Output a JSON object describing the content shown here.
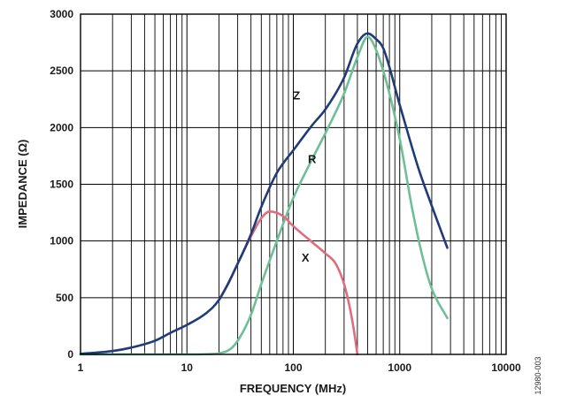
{
  "chart_data": {
    "type": "line",
    "title": "",
    "xlabel": "FREQUENCY (MHz)",
    "ylabel": "IMPEDANCE (Ω)",
    "x_scale": "log",
    "xlim": [
      1,
      10000
    ],
    "ylim": [
      0,
      3000
    ],
    "x_ticks": [
      "1",
      "10",
      "100",
      "1000",
      "10000"
    ],
    "y_ticks": [
      "0",
      "500",
      "1000",
      "1500",
      "2000",
      "2500",
      "3000"
    ],
    "grid": true,
    "figure_id": "12980-003",
    "series": [
      {
        "name": "Z",
        "color": "#1f3c78",
        "points": [
          [
            1,
            5
          ],
          [
            2,
            30
          ],
          [
            3,
            60
          ],
          [
            5,
            120
          ],
          [
            7,
            190
          ],
          [
            10,
            260
          ],
          [
            15,
            360
          ],
          [
            20,
            480
          ],
          [
            30,
            800
          ],
          [
            40,
            1060
          ],
          [
            50,
            1300
          ],
          [
            70,
            1600
          ],
          [
            100,
            1800
          ],
          [
            150,
            2020
          ],
          [
            200,
            2160
          ],
          [
            300,
            2440
          ],
          [
            400,
            2740
          ],
          [
            500,
            2830
          ],
          [
            600,
            2780
          ],
          [
            700,
            2700
          ],
          [
            1000,
            2200
          ],
          [
            1500,
            1640
          ],
          [
            2000,
            1310
          ],
          [
            2800,
            940
          ]
        ]
      },
      {
        "name": "R",
        "color": "#6dbf98",
        "points": [
          [
            1,
            0
          ],
          [
            5,
            0
          ],
          [
            10,
            0
          ],
          [
            15,
            2
          ],
          [
            20,
            10
          ],
          [
            25,
            40
          ],
          [
            30,
            120
          ],
          [
            40,
            350
          ],
          [
            50,
            620
          ],
          [
            70,
            1000
          ],
          [
            100,
            1380
          ],
          [
            150,
            1720
          ],
          [
            200,
            1950
          ],
          [
            300,
            2300
          ],
          [
            400,
            2620
          ],
          [
            500,
            2800
          ],
          [
            550,
            2760
          ],
          [
            700,
            2500
          ],
          [
            1000,
            1900
          ],
          [
            1300,
            1300
          ],
          [
            1600,
            900
          ],
          [
            2000,
            580
          ],
          [
            2800,
            320
          ]
        ]
      },
      {
        "name": "X",
        "color": "#e06c7e",
        "points": [
          [
            20,
            480
          ],
          [
            25,
            640
          ],
          [
            30,
            800
          ],
          [
            40,
            1040
          ],
          [
            50,
            1200
          ],
          [
            60,
            1260
          ],
          [
            80,
            1220
          ],
          [
            100,
            1130
          ],
          [
            150,
            990
          ],
          [
            200,
            890
          ],
          [
            250,
            800
          ],
          [
            300,
            620
          ],
          [
            350,
            350
          ],
          [
            380,
            150
          ],
          [
            400,
            0
          ]
        ]
      }
    ]
  }
}
